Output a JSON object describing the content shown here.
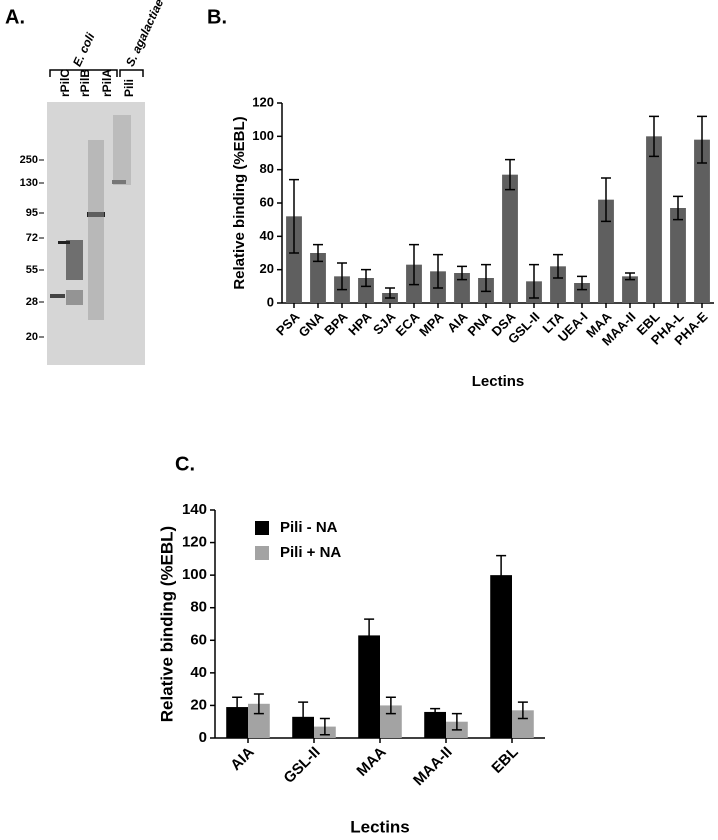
{
  "panel_a": {
    "label": "A.",
    "groups": [
      "E. coli",
      "S. agalactiae"
    ],
    "lanes": [
      "rPilC",
      "rPilB",
      "rPilA",
      "Pili"
    ],
    "markers": [
      250,
      130,
      95,
      72,
      55,
      28,
      20
    ]
  },
  "chart_data": [
    {
      "type": "bar",
      "panel_label": "B.",
      "x_label": "Lectins",
      "y_label": "Relative binding (%EBL)",
      "color": "#5f5f5f",
      "categories": [
        "PSA",
        "GNA",
        "BPA",
        "HPA",
        "SJA",
        "ECA",
        "MPA",
        "AIA",
        "PNA",
        "DSA",
        "GSL-II",
        "LTA",
        "UEA-I",
        "MAA",
        "MAA-II",
        "EBL",
        "PHA-L",
        "PHA-E"
      ],
      "values": [
        52,
        30,
        16,
        15,
        6,
        23,
        19,
        18,
        15,
        77,
        13,
        22,
        12,
        62,
        16,
        100,
        57,
        98
      ],
      "errors": [
        22,
        5,
        8,
        5,
        3,
        12,
        10,
        4,
        8,
        9,
        10,
        7,
        4,
        13,
        2,
        12,
        7,
        14
      ],
      "ylim": [
        0,
        120
      ],
      "yticks": [
        0,
        20,
        40,
        60,
        80,
        100,
        120
      ]
    },
    {
      "type": "grouped_bar",
      "panel_label": "C.",
      "x_label": "Lectins",
      "y_label": "Relative binding (%EBL)",
      "legend": "upper left",
      "categories": [
        "AIA",
        "GSL-II",
        "MAA",
        "MAA-II",
        "EBL"
      ],
      "series": [
        {
          "name": "Pili - NA",
          "color": "#000000",
          "values": [
            19,
            13,
            63,
            16,
            100
          ],
          "errors": [
            6,
            9,
            10,
            2,
            12
          ]
        },
        {
          "name": "Pili + NA",
          "color": "#a3a3a3",
          "values": [
            21,
            7,
            20,
            10,
            17
          ],
          "errors": [
            6,
            5,
            5,
            5,
            5
          ]
        }
      ],
      "ylim": [
        0,
        140
      ],
      "yticks": [
        0,
        20,
        40,
        60,
        80,
        100,
        120,
        140
      ]
    }
  ]
}
